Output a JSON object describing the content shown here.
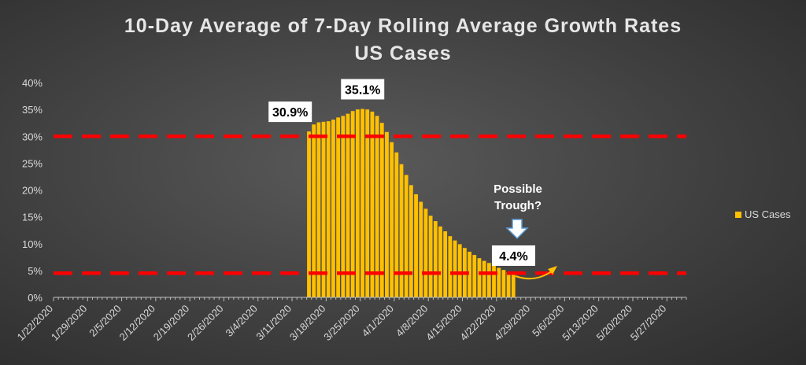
{
  "chart_data": {
    "type": "bar",
    "title": "10-Day Average of 7-Day Rolling Average Growth Rates",
    "subtitle": "US Cases",
    "x_start": "2020-01-22",
    "x_end": "2020-05-31",
    "x_tick_labels": [
      "1/22/2020",
      "1/29/2020",
      "2/5/2020",
      "2/12/2020",
      "2/19/2020",
      "2/26/2020",
      "3/4/2020",
      "3/11/2020",
      "3/18/2020",
      "3/25/2020",
      "4/1/2020",
      "4/8/2020",
      "4/15/2020",
      "4/22/2020",
      "4/29/2020",
      "5/6/2020",
      "5/13/2020",
      "5/20/2020",
      "5/27/2020"
    ],
    "y_tick_labels": [
      "0%",
      "5%",
      "10%",
      "15%",
      "20%",
      "25%",
      "30%",
      "35%",
      "40%"
    ],
    "ylim": [
      0,
      40
    ],
    "series": [
      {
        "name": "US Cases",
        "color": "#ffc000",
        "start_date": "2020-03-14",
        "values": [
          30.9,
          32.2,
          32.6,
          32.7,
          32.8,
          33.1,
          33.5,
          33.8,
          34.2,
          34.7,
          35.0,
          35.1,
          35.0,
          34.6,
          33.8,
          32.5,
          30.8,
          28.9,
          27.0,
          24.8,
          22.8,
          20.9,
          19.2,
          17.8,
          16.5,
          15.2,
          14.2,
          13.2,
          12.3,
          11.4,
          10.6,
          9.9,
          9.2,
          8.5,
          7.9,
          7.3,
          6.8,
          6.4,
          5.9,
          5.5,
          5.1,
          4.7,
          4.4
        ]
      }
    ],
    "reference_lines": [
      {
        "value": 30,
        "color": "#ff0000",
        "style": "dashed"
      },
      {
        "value": 4.5,
        "color": "#ff0000",
        "style": "dashed"
      }
    ],
    "callouts": [
      {
        "label": "30.9%",
        "date": "2020-03-14"
      },
      {
        "label": "35.1%",
        "date": "2020-03-25"
      },
      {
        "label": "4.4%",
        "date": "2020-04-25"
      }
    ],
    "annotation": {
      "line1": "Possible",
      "line2": "Trough?"
    },
    "legend": {
      "label": "US Cases",
      "position": "right"
    }
  }
}
